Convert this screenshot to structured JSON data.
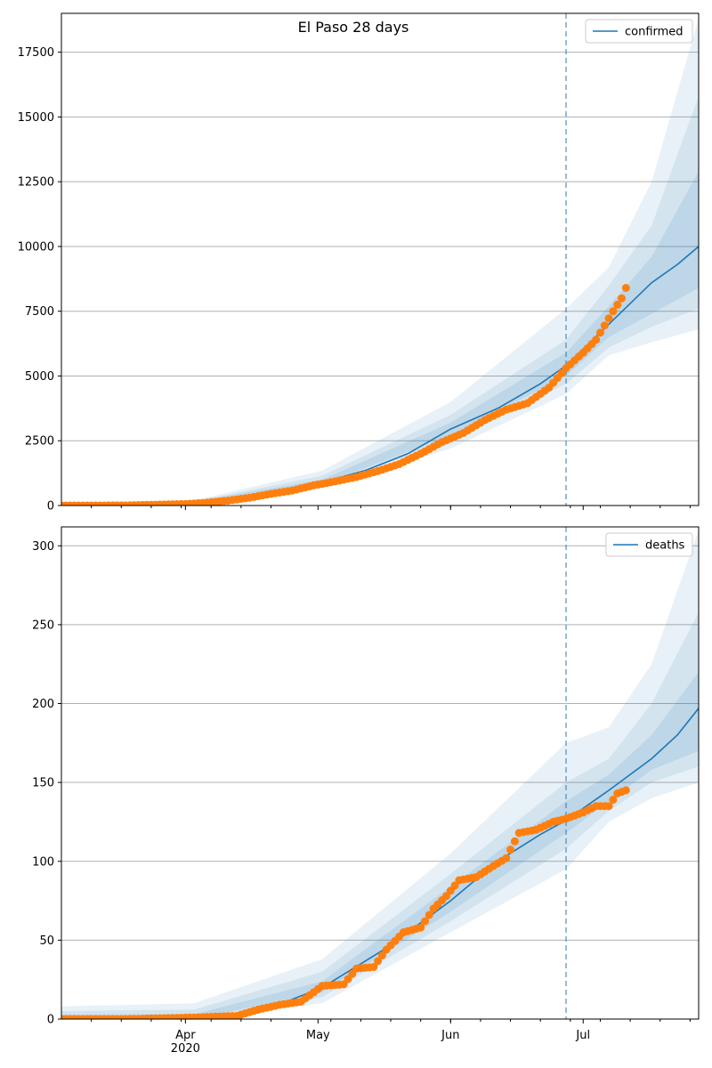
{
  "figure": {
    "title": "El Paso 28 days"
  },
  "colors": {
    "model": "#1f77b4",
    "observed": "#ff7f0e",
    "band": "#1f77b4",
    "grid": "#b0b0b0",
    "forecast_line": "#1f77b4"
  },
  "x_axis": {
    "start": "2020-02-29",
    "end": "2020-07-27",
    "forecast_date": "2020-06-26",
    "month_ticks": [
      {
        "date": "2020-03-29",
        "label": "Apr",
        "sublabel": "2020"
      },
      {
        "date": "2020-04-29",
        "label": "May",
        "sublabel": ""
      },
      {
        "date": "2020-05-30",
        "label": "Jun",
        "sublabel": ""
      },
      {
        "date": "2020-06-30",
        "label": "Jul",
        "sublabel": ""
      }
    ]
  },
  "chart_data": [
    {
      "type": "line",
      "legend": "confirmed",
      "legend_position": "top-right",
      "grid": "horizontal",
      "ylim": [
        0,
        19000
      ],
      "yticks": [
        "0",
        "2500",
        "5000",
        "7500",
        "10000",
        "12500",
        "15000",
        "17500"
      ],
      "model_median": [
        [
          "2020-02-29",
          0
        ],
        [
          "2020-03-20",
          40
        ],
        [
          "2020-03-31",
          120
        ],
        [
          "2020-04-10",
          300
        ],
        [
          "2020-04-20",
          560
        ],
        [
          "2020-04-30",
          900
        ],
        [
          "2020-05-10",
          1350
        ],
        [
          "2020-05-20",
          2000
        ],
        [
          "2020-05-30",
          2950
        ],
        [
          "2020-06-10",
          3750
        ],
        [
          "2020-06-20",
          4700
        ],
        [
          "2020-06-26",
          5400
        ],
        [
          "2020-07-06",
          7000
        ],
        [
          "2020-07-16",
          8600
        ],
        [
          "2020-07-22",
          9300
        ],
        [
          "2020-07-27",
          10000
        ]
      ],
      "band_outer": [
        [
          "2020-02-29",
          0,
          60
        ],
        [
          "2020-03-31",
          60,
          200
        ],
        [
          "2020-04-30",
          650,
          1350
        ],
        [
          "2020-05-30",
          2200,
          4000
        ],
        [
          "2020-06-26",
          4300,
          7600
        ],
        [
          "2020-07-06",
          5800,
          9200
        ],
        [
          "2020-07-16",
          6300,
          12500
        ],
        [
          "2020-07-27",
          6800,
          18800
        ]
      ],
      "band_mid": [
        [
          "2020-02-29",
          0,
          40
        ],
        [
          "2020-03-31",
          80,
          170
        ],
        [
          "2020-04-30",
          750,
          1150
        ],
        [
          "2020-05-30",
          2500,
          3500
        ],
        [
          "2020-06-26",
          4700,
          6400
        ],
        [
          "2020-07-06",
          6100,
          8500
        ],
        [
          "2020-07-16",
          6900,
          10800
        ],
        [
          "2020-07-27",
          7600,
          15800
        ]
      ],
      "band_inner": [
        [
          "2020-02-29",
          0,
          30
        ],
        [
          "2020-03-31",
          100,
          150
        ],
        [
          "2020-04-30",
          820,
          1000
        ],
        [
          "2020-05-30",
          2700,
          3200
        ],
        [
          "2020-06-26",
          5000,
          5900
        ],
        [
          "2020-07-06",
          6500,
          7700
        ],
        [
          "2020-07-16",
          7400,
          9600
        ],
        [
          "2020-07-27",
          8400,
          12900
        ]
      ],
      "observed": [
        [
          "2020-02-29",
          0
        ],
        [
          "2020-03-08",
          0
        ],
        [
          "2020-03-15",
          5
        ],
        [
          "2020-03-22",
          30
        ],
        [
          "2020-03-29",
          60
        ],
        [
          "2020-04-03",
          110
        ],
        [
          "2020-04-08",
          190
        ],
        [
          "2020-04-13",
          300
        ],
        [
          "2020-04-18",
          450
        ],
        [
          "2020-04-23",
          580
        ],
        [
          "2020-04-28",
          780
        ],
        [
          "2020-05-03",
          930
        ],
        [
          "2020-05-08",
          1100
        ],
        [
          "2020-05-13",
          1330
        ],
        [
          "2020-05-18",
          1600
        ],
        [
          "2020-05-23",
          2000
        ],
        [
          "2020-05-28",
          2450
        ],
        [
          "2020-06-02",
          2800
        ],
        [
          "2020-06-07",
          3300
        ],
        [
          "2020-06-12",
          3700
        ],
        [
          "2020-06-17",
          3950
        ],
        [
          "2020-06-22",
          4550
        ],
        [
          "2020-06-26",
          5300
        ],
        [
          "2020-06-30",
          5900
        ],
        [
          "2020-07-03",
          6400
        ],
        [
          "2020-07-05",
          6950
        ],
        [
          "2020-07-07",
          7500
        ],
        [
          "2020-07-09",
          8000
        ],
        [
          "2020-07-10",
          8400
        ]
      ]
    },
    {
      "type": "line",
      "legend": "deaths",
      "legend_position": "top-right",
      "grid": "horizontal",
      "ylim": [
        0,
        312
      ],
      "yticks": [
        "0",
        "50",
        "100",
        "150",
        "200",
        "250",
        "300"
      ],
      "model_median": [
        [
          "2020-02-29",
          0
        ],
        [
          "2020-03-31",
          1
        ],
        [
          "2020-04-15",
          4
        ],
        [
          "2020-04-30",
          20
        ],
        [
          "2020-05-15",
          45
        ],
        [
          "2020-05-30",
          75
        ],
        [
          "2020-06-10",
          100
        ],
        [
          "2020-06-20",
          117
        ],
        [
          "2020-06-26",
          126
        ],
        [
          "2020-07-06",
          145
        ],
        [
          "2020-07-16",
          165
        ],
        [
          "2020-07-22",
          180
        ],
        [
          "2020-07-27",
          197
        ]
      ],
      "band_outer": [
        [
          "2020-02-29",
          0,
          8
        ],
        [
          "2020-03-31",
          0,
          10
        ],
        [
          "2020-04-30",
          10,
          38
        ],
        [
          "2020-05-30",
          55,
          105
        ],
        [
          "2020-06-26",
          95,
          175
        ],
        [
          "2020-07-06",
          125,
          185
        ],
        [
          "2020-07-16",
          140,
          225
        ],
        [
          "2020-07-27",
          150,
          310
        ]
      ],
      "band_mid": [
        [
          "2020-02-29",
          0,
          5
        ],
        [
          "2020-03-31",
          0,
          6
        ],
        [
          "2020-04-30",
          14,
          30
        ],
        [
          "2020-05-30",
          62,
          92
        ],
        [
          "2020-06-26",
          108,
          150
        ],
        [
          "2020-07-06",
          132,
          165
        ],
        [
          "2020-07-16",
          150,
          200
        ],
        [
          "2020-07-27",
          160,
          258
        ]
      ],
      "band_inner": [
        [
          "2020-02-29",
          0,
          3
        ],
        [
          "2020-03-31",
          0,
          3
        ],
        [
          "2020-04-30",
          17,
          24
        ],
        [
          "2020-05-30",
          68,
          84
        ],
        [
          "2020-06-26",
          118,
          138
        ],
        [
          "2020-07-06",
          138,
          155
        ],
        [
          "2020-07-16",
          158,
          180
        ],
        [
          "2020-07-27",
          170,
          220
        ]
      ],
      "observed": [
        [
          "2020-02-29",
          0
        ],
        [
          "2020-03-15",
          0
        ],
        [
          "2020-03-31",
          1
        ],
        [
          "2020-04-10",
          2
        ],
        [
          "2020-04-15",
          6
        ],
        [
          "2020-04-20",
          9
        ],
        [
          "2020-04-25",
          11
        ],
        [
          "2020-04-30",
          21
        ],
        [
          "2020-05-05",
          22
        ],
        [
          "2020-05-08",
          32
        ],
        [
          "2020-05-12",
          33
        ],
        [
          "2020-05-15",
          44
        ],
        [
          "2020-05-19",
          55
        ],
        [
          "2020-05-23",
          58
        ],
        [
          "2020-05-26",
          70
        ],
        [
          "2020-05-29",
          78
        ],
        [
          "2020-06-01",
          88
        ],
        [
          "2020-06-05",
          90
        ],
        [
          "2020-06-09",
          97
        ],
        [
          "2020-06-12",
          102
        ],
        [
          "2020-06-15",
          118
        ],
        [
          "2020-06-19",
          120
        ],
        [
          "2020-06-23",
          125
        ],
        [
          "2020-06-26",
          127
        ],
        [
          "2020-06-30",
          131
        ],
        [
          "2020-07-03",
          135
        ],
        [
          "2020-07-06",
          135
        ],
        [
          "2020-07-08",
          143
        ],
        [
          "2020-07-10",
          145
        ]
      ]
    }
  ]
}
